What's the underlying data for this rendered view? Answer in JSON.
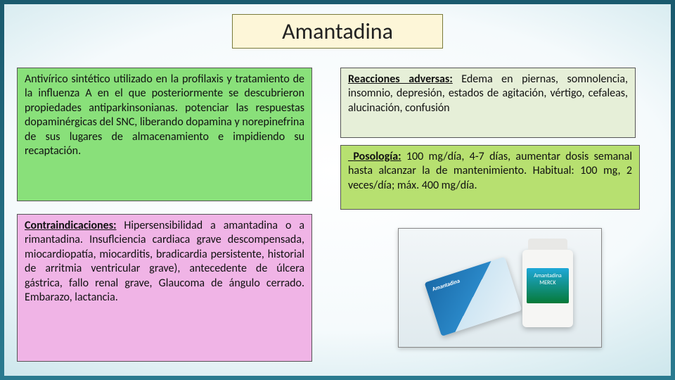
{
  "title": "Amantadina",
  "description": {
    "text": "Antivírico sintético utilizado en la profilaxis y tratamiento de la influenza A en el que posteriormente se descubrieron propiedades antiparkinsonianas. potenciar las respuestas dopaminérgicas del SNC, liberando dopamina y norepinefrina de sus lugares de almacenamiento e impidiendo su recaptación.",
    "bg_color": "#89e07a"
  },
  "contraindications": {
    "label": "Contraindicaciones:",
    "text": " Hipersensibilidad a amantadina o a rimantadina. Insuflciencia cardiaca grave descompensada, miocardiopatía, miocarditis, bradicardia persistente, historial de arritmia ventricular grave), antecedente de úlcera gástrica, fallo renal grave, Glaucoma de ángulo cerrado. Embarazo, lactancia.",
    "bg_color": "#f0b4e6"
  },
  "reactions": {
    "label": "Reacciones adversas:",
    "text": " Edema en piernas, somnolencia, insomnio, depresión, estados de agitación, vértigo, cefaleas, alucinación, confusión",
    "bg_color": "#e6efd8"
  },
  "posology": {
    "label": "Posología:",
    "text": " 100 mg/día, 4-7 días, aumentar dosis semanal hasta alcanzar la de mantenimiento. Habitual: 100 mg, 2 veces/día; máx. 400 mg/día.",
    "bg_color": "#b7e070"
  },
  "product_image": {
    "box_label": "Amantadina",
    "bottle_label": "Amantadina MERCK"
  },
  "colors": {
    "title_bg": "#fdf6d8",
    "title_border": "#7a7a3a",
    "slide_border": "#1a5a6e"
  }
}
